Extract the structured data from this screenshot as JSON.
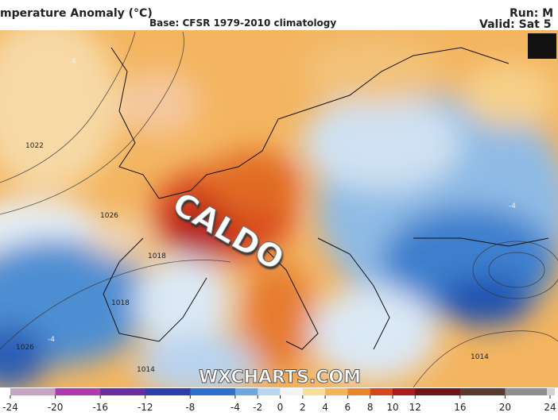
{
  "title": "mperature Anomaly (°C)",
  "subtitle": "Base: CFSR 1979-2010 climatology",
  "run": "Run: M",
  "valid": "Valid: Sat 5",
  "annotation": "CALDO",
  "watermark": "WXCHARTS.COM",
  "isobar_labels": [
    "1022",
    "1026",
    "1018",
    "1018",
    "1026",
    "1014",
    "1014"
  ],
  "contour_labels": [
    "4",
    "-4",
    "-4"
  ],
  "colorbar": {
    "ticks": [
      -24,
      -20,
      -16,
      -12,
      -8,
      -4,
      -2,
      0,
      2,
      4,
      6,
      8,
      10,
      12,
      16,
      20,
      24
    ],
    "colors": [
      "#c9a3c4",
      "#b03ab0",
      "#6b2d9e",
      "#2b3fa8",
      "#2f6fcc",
      "#6fa8e0",
      "#b8d6f0",
      "#f4f4f4",
      "#f7df9a",
      "#f2b45a",
      "#e8862e",
      "#d4461d",
      "#a81d1b",
      "#6e1616",
      "#5a3a30",
      "#8f8f8f",
      "#d2d2d2"
    ]
  }
}
